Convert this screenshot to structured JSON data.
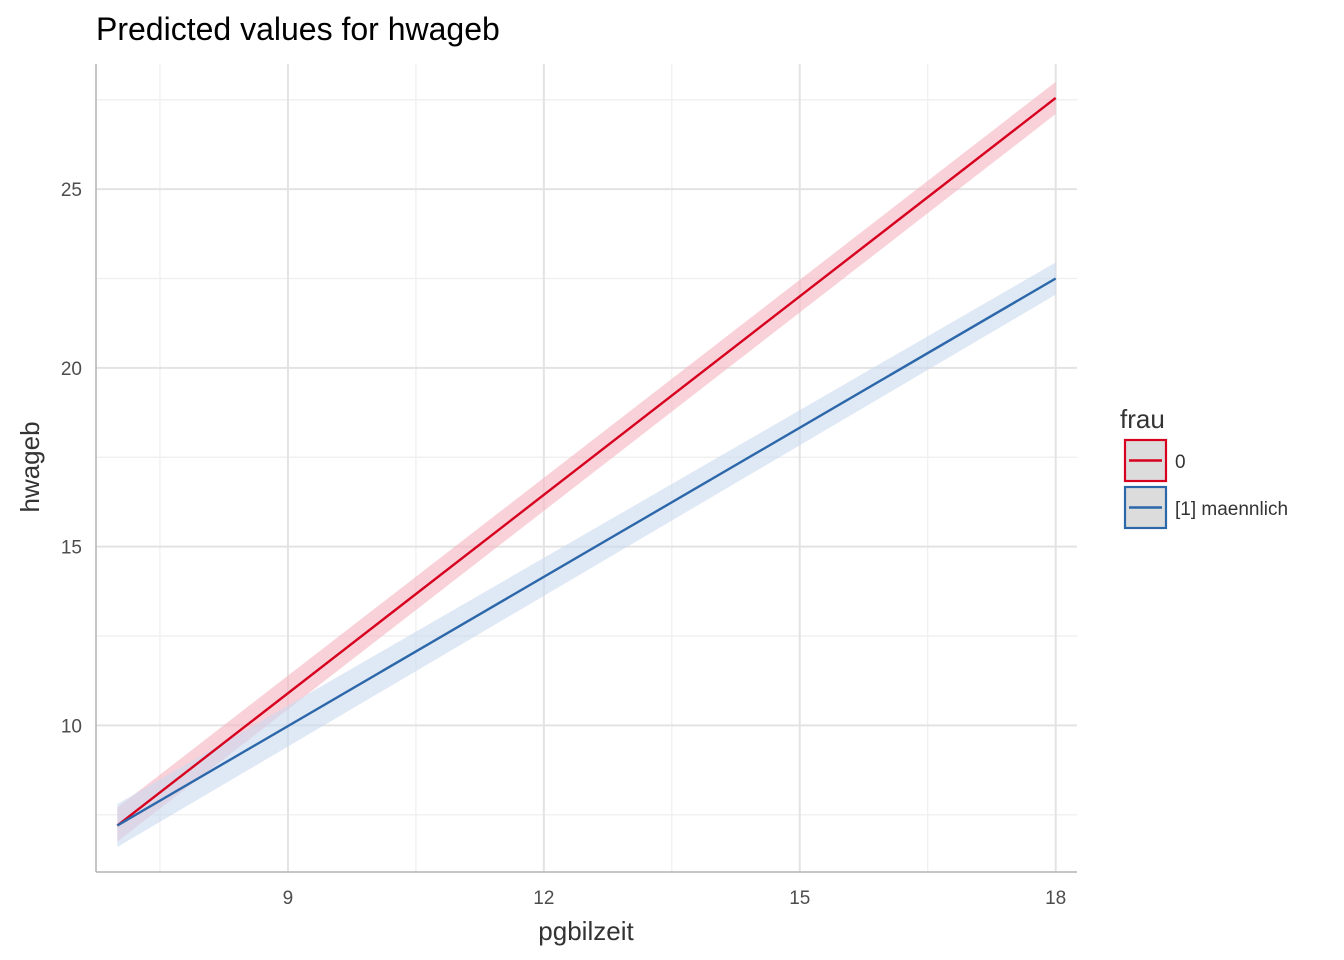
{
  "chart_data": {
    "type": "line",
    "title": "Predicted values for hwageb",
    "xlabel": "pgbilzeit",
    "ylabel": "hwageb",
    "xlim": [
      6.75,
      18.25
    ],
    "ylim": [
      5.9,
      28.5
    ],
    "x_ticks": [
      9,
      12,
      15,
      18
    ],
    "y_ticks": [
      10,
      15,
      20,
      25
    ],
    "x_tick_labels": [
      "9",
      "12",
      "15",
      "18"
    ],
    "y_tick_labels": [
      "10",
      "15",
      "20",
      "25"
    ],
    "grid": true,
    "legend": {
      "title": "frau",
      "position": "right",
      "entries": [
        "0",
        "[1] maennlich"
      ]
    },
    "series": [
      {
        "name": "0",
        "color": "#d7001f",
        "band_color": "#f5b4bf",
        "x": [
          7,
          18
        ],
        "y": [
          7.2,
          27.55
        ],
        "lower": [
          6.75,
          27.1
        ],
        "upper": [
          7.7,
          28.0
        ]
      },
      {
        "name": "[1] maennlich",
        "color": "#2b67a9",
        "band_color": "#c9d8ee",
        "x": [
          7,
          18
        ],
        "y": [
          7.2,
          22.5
        ],
        "lower": [
          6.6,
          22.05
        ],
        "upper": [
          7.8,
          22.95
        ]
      }
    ]
  }
}
